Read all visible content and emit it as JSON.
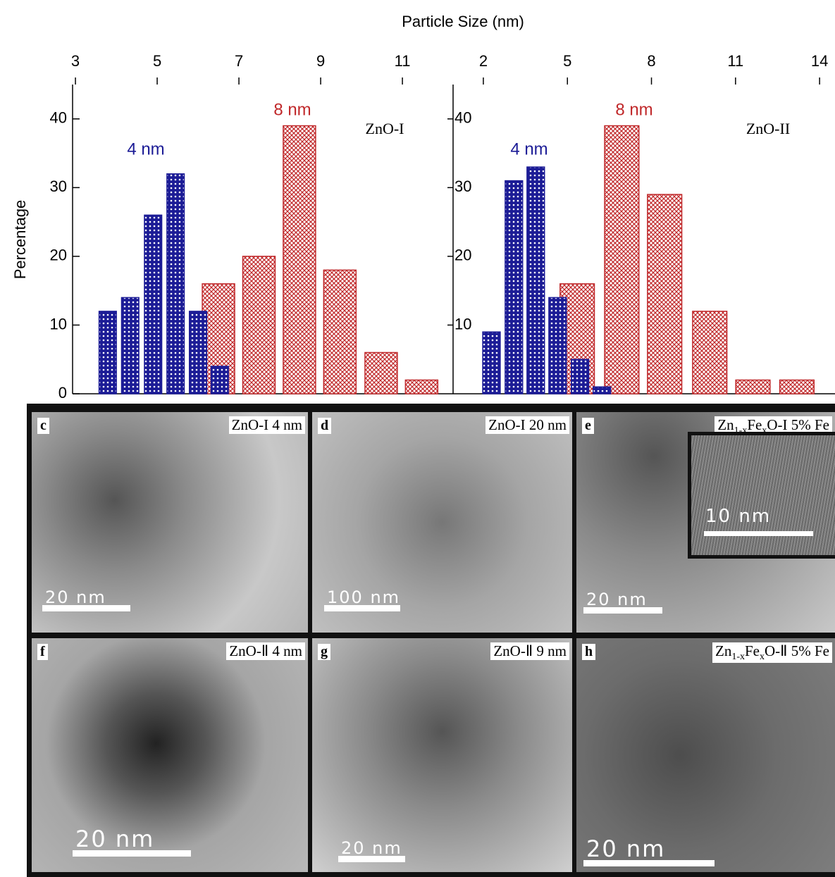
{
  "chart_data": [
    {
      "type": "bar",
      "xlabel": "Particle Size (nm)",
      "ylabel": "Percentage",
      "xlim": [
        2.93,
        12.24
      ],
      "xticks": [
        3,
        5,
        7,
        9,
        11
      ],
      "ylim": [
        0,
        45
      ],
      "yticks": [
        0,
        10,
        20,
        30,
        40
      ],
      "series": [
        {
          "color": "#c0282a",
          "x": [
            6.5,
            7.49,
            8.48,
            9.47,
            10.48,
            11.47
          ],
          "values": [
            16,
            20,
            39,
            18,
            6,
            2
          ]
        },
        {
          "color": "#1c1c96",
          "x": [
            3.79,
            4.34,
            4.9,
            5.45,
            6.0,
            6.53
          ],
          "values": [
            12,
            14,
            26,
            32,
            12,
            4
          ]
        }
      ],
      "annotations": [
        {
          "text": "4 nm",
          "color": "#1c1c96"
        },
        {
          "text": "8 nm",
          "color": "#c0282a"
        },
        {
          "text": "ZnO-I",
          "color": "#000000"
        }
      ]
    },
    {
      "type": "bar",
      "xlim": [
        0.92,
        14.55
      ],
      "xticks": [
        2,
        5,
        8,
        11,
        14
      ],
      "ylim": [
        0,
        45
      ],
      "yticks": [
        10,
        20,
        30,
        40
      ],
      "series": [
        {
          "color": "#c0282a",
          "x": [
            5.35,
            6.94,
            8.47,
            10.08,
            11.62,
            13.19
          ],
          "values": [
            16,
            39,
            29,
            12,
            2,
            2
          ]
        },
        {
          "color": "#1c1c96",
          "x": [
            2.29,
            3.09,
            3.87,
            4.65,
            5.45,
            6.23
          ],
          "values": [
            9,
            31,
            33,
            14,
            5,
            1
          ]
        }
      ],
      "annotations": [
        {
          "text": "4 nm",
          "color": "#1c1c96"
        },
        {
          "text": "8 nm",
          "color": "#c0282a"
        },
        {
          "text": "ZnO-II",
          "color": "#000000"
        }
      ]
    }
  ],
  "panels": [
    {
      "letter": "c",
      "caption": [
        "ZnO-I 4 nm"
      ],
      "scale_bar": "20 nm"
    },
    {
      "letter": "d",
      "caption": [
        "ZnO-I 20 nm"
      ],
      "scale_bar": "100 nm"
    },
    {
      "letter": "e",
      "caption": [
        "Zn",
        "1-x",
        "Fe",
        "x",
        "O-I 5% Fe"
      ],
      "scale_bar": "20 nm",
      "inset_scale_bar": "10 nm"
    },
    {
      "letter": "f",
      "caption": [
        "ZnO-Ⅱ 4 nm"
      ],
      "scale_bar": "20 nm"
    },
    {
      "letter": "g",
      "caption": [
        "ZnO-Ⅱ 9 nm"
      ],
      "scale_bar": "20 nm"
    },
    {
      "letter": "h",
      "caption": [
        "Zn",
        "1-x",
        "Fe",
        "x",
        "O-Ⅱ 5% Fe"
      ],
      "scale_bar": "20 nm"
    }
  ]
}
